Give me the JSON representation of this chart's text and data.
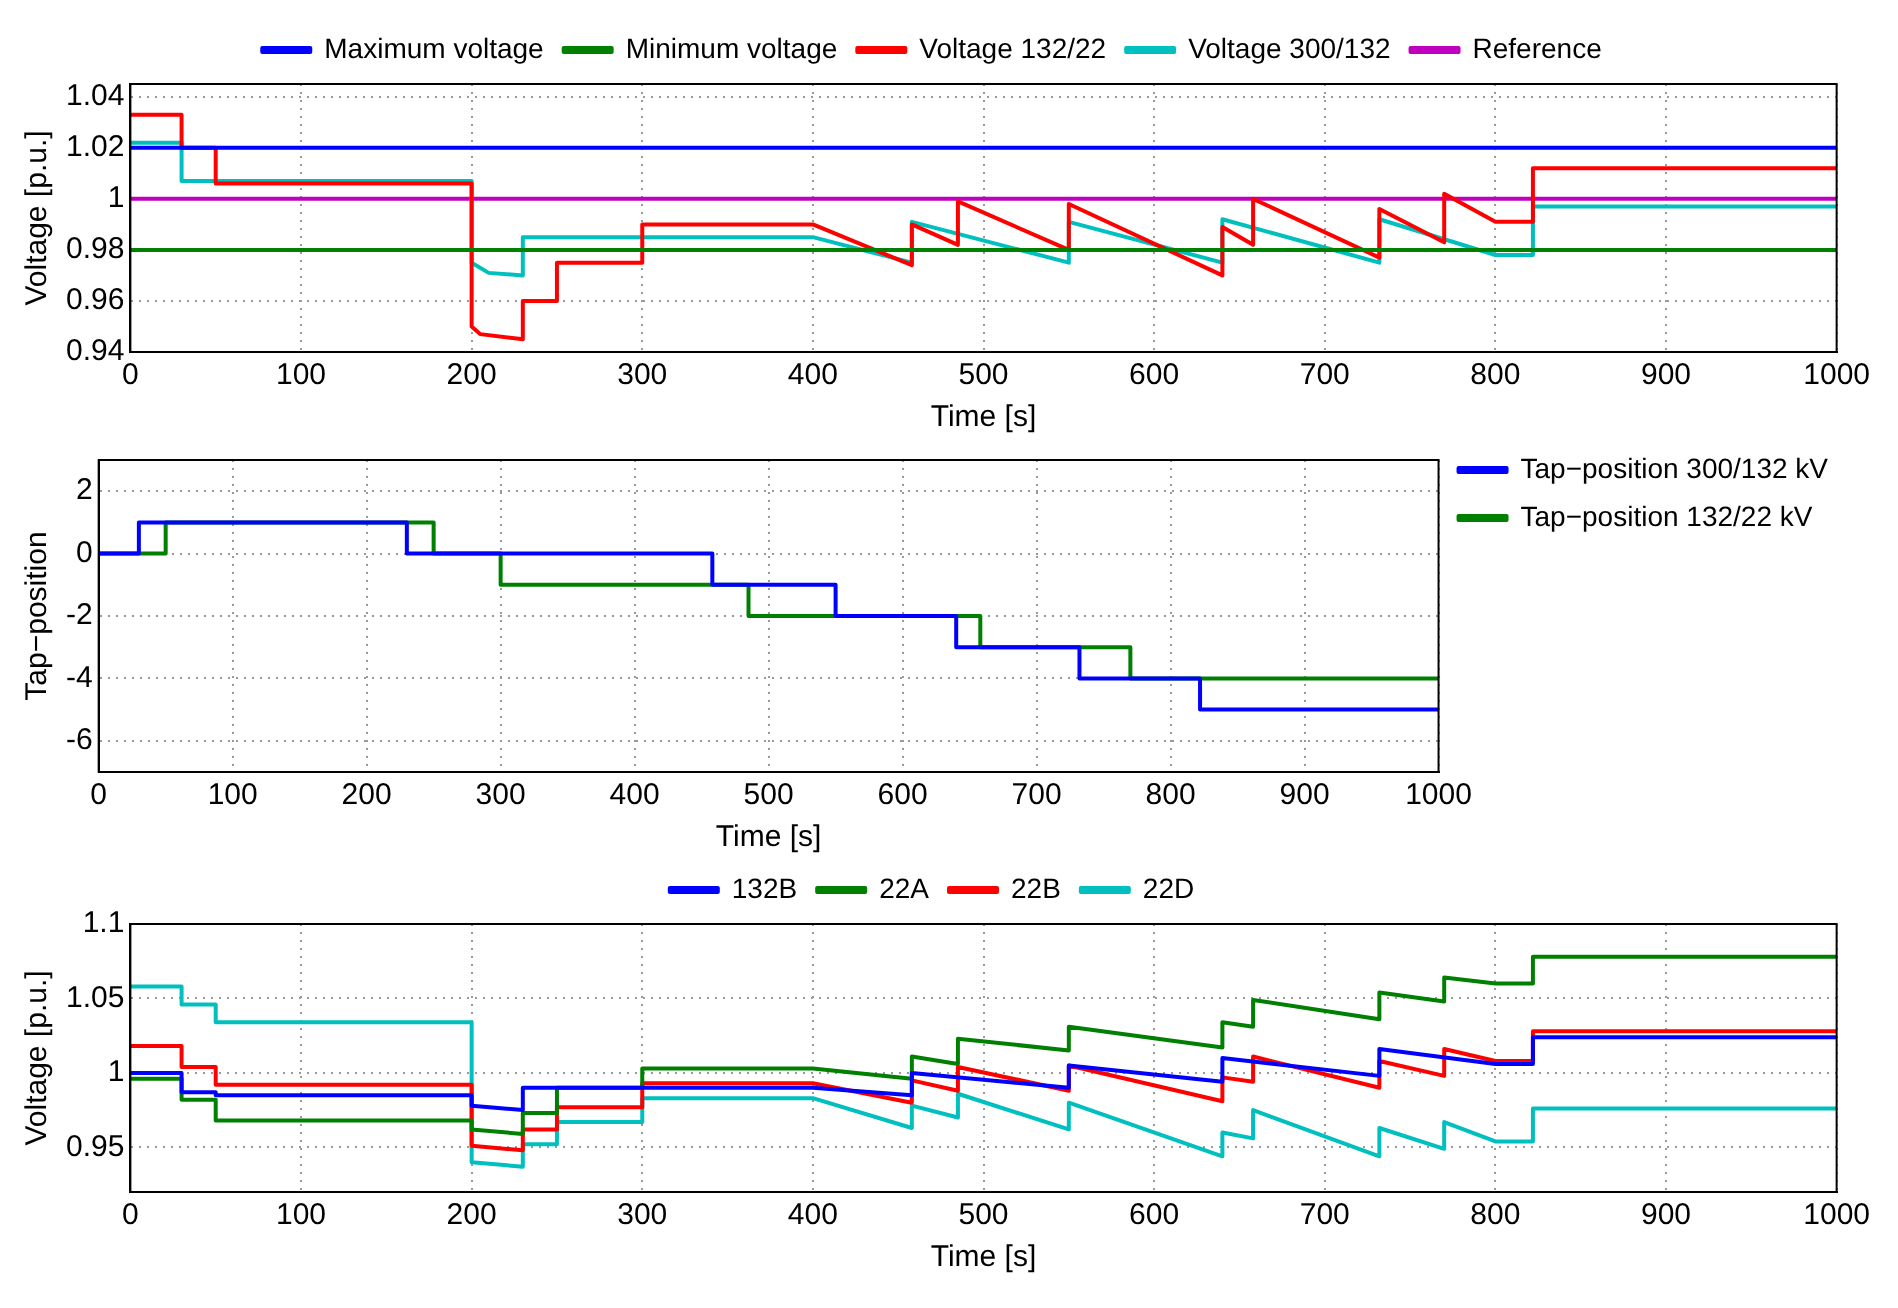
{
  "chart_data": [
    {
      "type": "line",
      "xlabel": "Time [s]",
      "ylabel": "Voltage [p.u.]",
      "xlim": [
        0,
        1000
      ],
      "xticks": [
        0,
        100,
        200,
        300,
        400,
        500,
        600,
        700,
        800,
        900,
        1000
      ],
      "ylim": [
        0.94,
        1.045
      ],
      "yticks": [
        0.94,
        0.96,
        0.98,
        1,
        1.02,
        1.04
      ],
      "grid": true,
      "legend": "top",
      "series": [
        {
          "name": "Maximum voltage",
          "color": "#0000ff",
          "x": [
            0,
            1000
          ],
          "values": [
            1.02,
            1.02
          ]
        },
        {
          "name": "Minimum voltage",
          "color": "#008000",
          "x": [
            0,
            1000
          ],
          "values": [
            0.98,
            0.98
          ]
        },
        {
          "name": "Voltage 132/22",
          "color": "#ff0000",
          "x": [
            0,
            30,
            30,
            50,
            50,
            200,
            200,
            205,
            230,
            230,
            250,
            250,
            300,
            300,
            400,
            458,
            458,
            485,
            485,
            550,
            550,
            640,
            640,
            658,
            658,
            732,
            732,
            770,
            770,
            800,
            822,
            822,
            1000
          ],
          "values": [
            1.033,
            1.033,
            1.02,
            1.02,
            1.006,
            1.006,
            0.95,
            0.947,
            0.945,
            0.96,
            0.96,
            0.975,
            0.975,
            0.99,
            0.99,
            0.974,
            0.99,
            0.982,
            0.999,
            0.98,
            0.998,
            0.97,
            0.989,
            0.982,
            1.0,
            0.977,
            0.996,
            0.983,
            1.002,
            0.991,
            0.991,
            1.012,
            1.012
          ]
        },
        {
          "name": "Voltage 300/132",
          "color": "#00bfbf",
          "x": [
            0,
            30,
            30,
            200,
            200,
            210,
            230,
            230,
            400,
            458,
            458,
            550,
            550,
            640,
            640,
            732,
            732,
            800,
            822,
            822,
            1000
          ],
          "values": [
            1.022,
            1.022,
            1.007,
            1.007,
            0.975,
            0.971,
            0.97,
            0.985,
            0.985,
            0.975,
            0.991,
            0.975,
            0.991,
            0.975,
            0.992,
            0.975,
            0.992,
            0.978,
            0.978,
            0.997,
            0.997
          ]
        },
        {
          "name": "Reference",
          "color": "#bf00bf",
          "x": [
            0,
            1000
          ],
          "values": [
            1.0,
            1.0
          ]
        }
      ]
    },
    {
      "type": "step",
      "xlabel": "Time [s]",
      "ylabel": "Tap−position",
      "xlim": [
        0,
        1000
      ],
      "xticks": [
        0,
        100,
        200,
        300,
        400,
        500,
        600,
        700,
        800,
        900,
        1000
      ],
      "ylim": [
        -7,
        3
      ],
      "yticks": [
        -6,
        -4,
        -2,
        0,
        2
      ],
      "grid": true,
      "legend": "top right",
      "series": [
        {
          "name": "Tap−position 300/132 kV",
          "color": "#0000ff",
          "x": [
            0,
            30,
            230,
            458,
            550,
            640,
            732,
            822,
            1000
          ],
          "values": [
            0,
            1,
            0,
            -1,
            -2,
            -3,
            -4,
            -5,
            -5
          ]
        },
        {
          "name": "Tap−position 132/22 kV",
          "color": "#008000",
          "x": [
            0,
            50,
            250,
            300,
            485,
            658,
            770,
            1000
          ],
          "values": [
            0,
            1,
            0,
            -1,
            -2,
            -3,
            -4,
            -4
          ]
        }
      ]
    },
    {
      "type": "line",
      "xlabel": "Time [s]",
      "ylabel": "Voltage [p.u.]",
      "xlim": [
        0,
        1000
      ],
      "xticks": [
        0,
        100,
        200,
        300,
        400,
        500,
        600,
        700,
        800,
        900,
        1000
      ],
      "ylim": [
        0.92,
        1.1
      ],
      "yticks": [
        0.95,
        1,
        1.05,
        1.1
      ],
      "grid": true,
      "legend": "top",
      "series": [
        {
          "name": "132B",
          "color": "#0000ff",
          "x": [
            0,
            30,
            30,
            50,
            50,
            200,
            200,
            230,
            230,
            300,
            400,
            458,
            458,
            550,
            550,
            640,
            640,
            732,
            732,
            800,
            822,
            822,
            1000
          ],
          "values": [
            1.0,
            1.0,
            0.987,
            0.987,
            0.985,
            0.985,
            0.978,
            0.975,
            0.99,
            0.99,
            0.99,
            0.985,
            1.0,
            0.99,
            1.005,
            0.994,
            1.01,
            0.998,
            1.016,
            1.006,
            1.006,
            1.024,
            1.024
          ]
        },
        {
          "name": "22A",
          "color": "#008000",
          "x": [
            0,
            30,
            30,
            50,
            50,
            200,
            200,
            230,
            230,
            250,
            250,
            300,
            300,
            400,
            458,
            458,
            485,
            485,
            550,
            550,
            640,
            640,
            658,
            658,
            732,
            732,
            770,
            770,
            800,
            822,
            822,
            1000
          ],
          "values": [
            0.996,
            0.996,
            0.982,
            0.982,
            0.968,
            0.968,
            0.962,
            0.959,
            0.973,
            0.973,
            0.99,
            0.99,
            1.003,
            1.003,
            0.996,
            1.011,
            1.006,
            1.023,
            1.015,
            1.031,
            1.017,
            1.034,
            1.031,
            1.049,
            1.036,
            1.054,
            1.048,
            1.064,
            1.06,
            1.06,
            1.078,
            1.078
          ]
        },
        {
          "name": "22B",
          "color": "#ff0000",
          "x": [
            0,
            30,
            30,
            50,
            50,
            200,
            200,
            230,
            230,
            250,
            250,
            300,
            300,
            400,
            458,
            458,
            485,
            485,
            550,
            550,
            640,
            640,
            658,
            658,
            732,
            732,
            770,
            770,
            800,
            822,
            822,
            1000
          ],
          "values": [
            1.018,
            1.018,
            1.004,
            1.004,
            0.992,
            0.992,
            0.951,
            0.948,
            0.962,
            0.962,
            0.977,
            0.977,
            0.993,
            0.993,
            0.98,
            0.995,
            0.988,
            1.004,
            0.988,
            1.005,
            0.981,
            0.997,
            0.994,
            1.011,
            0.99,
            1.008,
            0.998,
            1.016,
            1.008,
            1.008,
            1.028,
            1.028
          ]
        },
        {
          "name": "22D",
          "color": "#00bfbf",
          "x": [
            0,
            30,
            30,
            50,
            50,
            200,
            200,
            230,
            230,
            250,
            250,
            300,
            300,
            400,
            458,
            458,
            485,
            485,
            550,
            550,
            640,
            640,
            658,
            658,
            732,
            732,
            770,
            770,
            800,
            822,
            822,
            1000
          ],
          "values": [
            1.058,
            1.058,
            1.046,
            1.046,
            1.034,
            1.034,
            0.94,
            0.937,
            0.952,
            0.952,
            0.967,
            0.967,
            0.983,
            0.983,
            0.963,
            0.978,
            0.97,
            0.986,
            0.962,
            0.98,
            0.944,
            0.96,
            0.956,
            0.975,
            0.944,
            0.963,
            0.949,
            0.967,
            0.954,
            0.954,
            0.976,
            0.976
          ]
        }
      ]
    }
  ]
}
